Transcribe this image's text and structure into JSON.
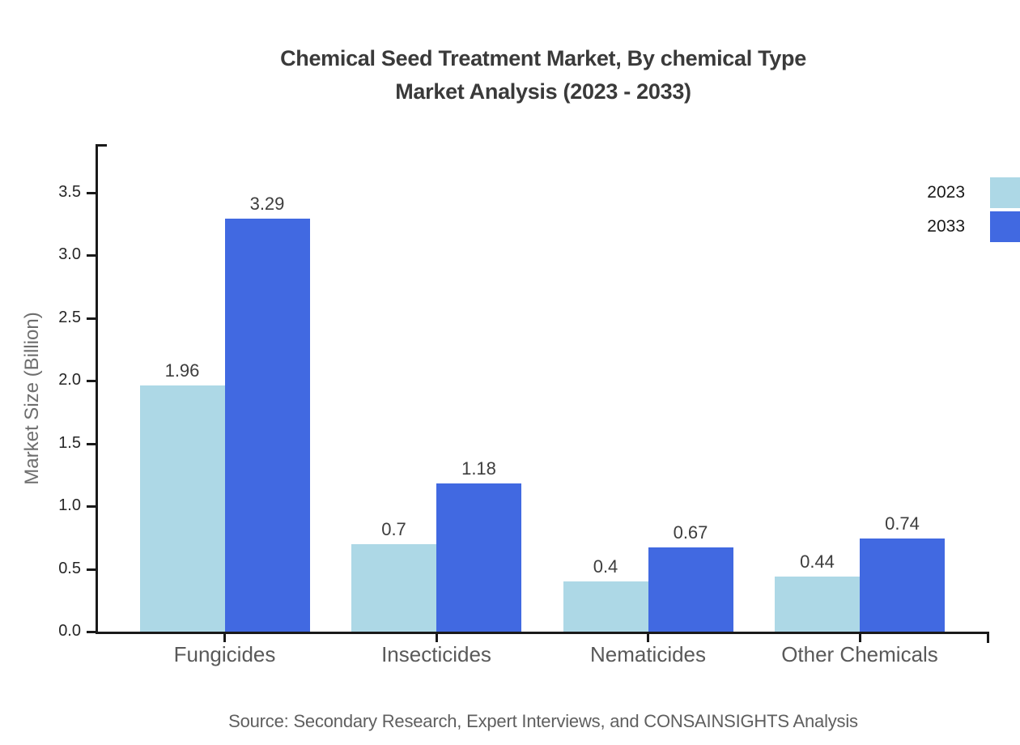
{
  "title": {
    "line1": "Chemical Seed Treatment Market, By chemical Type",
    "line2": "Market Analysis (2023 - 2033)"
  },
  "chart_data": {
    "type": "bar",
    "title": "Chemical Seed Treatment Market, By chemical Type Market Analysis (2023 - 2033)",
    "categories": [
      "Fungicides",
      "Insecticides",
      "Nematicides",
      "Other Chemicals"
    ],
    "series": [
      {
        "name": "2023",
        "color": "#add8e6",
        "values": [
          1.96,
          0.7,
          0.4,
          0.44
        ],
        "value_labels": [
          "1.96",
          "0.7",
          "0.4",
          "0.44"
        ]
      },
      {
        "name": "2033",
        "color": "#4169e1",
        "values": [
          3.29,
          1.18,
          0.67,
          0.74
        ],
        "value_labels": [
          "3.29",
          "1.18",
          "0.67",
          "0.74"
        ]
      }
    ],
    "xlabel": "",
    "ylabel": "Market Size (Billion)",
    "ylim": [
      0,
      3.88
    ],
    "yticks": [
      0,
      0.5,
      1,
      1.5,
      2,
      2.5,
      3,
      3.5
    ],
    "ytick_labels": [
      "0.0",
      "0.5",
      "1.0",
      "1.5",
      "2.0",
      "2.5",
      "3.0",
      "3.5"
    ],
    "grid": false,
    "legend_position": "top-right"
  },
  "source": {
    "text": "Source: Secondary Research, Expert Interviews, and CONSAINSIGHTS Analysis"
  }
}
